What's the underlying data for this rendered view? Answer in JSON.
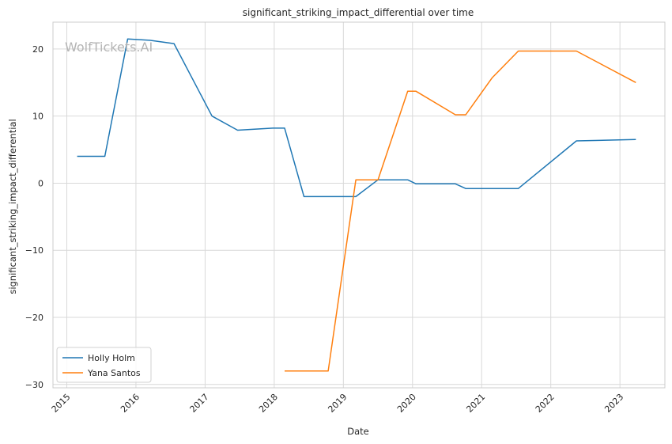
{
  "chart_data": {
    "type": "line",
    "title": "significant_striking_impact_differential over time",
    "xlabel": "Date",
    "ylabel": "significant_striking_impact_differential",
    "watermark": "WolfTickets.AI",
    "xlim": [
      2014.8,
      2023.65
    ],
    "ylim": [
      -30.5,
      24
    ],
    "x_ticks": [
      2015,
      2016,
      2017,
      2018,
      2019,
      2020,
      2021,
      2022,
      2023
    ],
    "x_tick_labels": [
      "2015",
      "2016",
      "2017",
      "2018",
      "2019",
      "2020",
      "2021",
      "2022",
      "2023"
    ],
    "y_ticks": [
      -30,
      -20,
      -10,
      0,
      10,
      20
    ],
    "y_tick_labels": [
      "−30",
      "−20",
      "−10",
      "0",
      "10",
      "20"
    ],
    "grid": true,
    "legend_position": "lower-left",
    "series": [
      {
        "name": "Holly Holm",
        "color": "#1f77b4",
        "x": [
          2015.15,
          2015.55,
          2015.88,
          2016.2,
          2016.55,
          2017.1,
          2017.47,
          2017.98,
          2018.15,
          2018.43,
          2018.9,
          2019.18,
          2019.5,
          2019.93,
          2020.05,
          2020.35,
          2020.62,
          2020.77,
          2021.18,
          2021.53,
          2022.37,
          2023.23
        ],
        "y": [
          4,
          4,
          21.5,
          21.3,
          20.8,
          10,
          7.9,
          8.2,
          8.2,
          -2,
          -2,
          -2,
          0.5,
          0.5,
          -0.1,
          -0.1,
          -0.1,
          -0.8,
          -0.8,
          -0.8,
          6.3,
          6.5
        ]
      },
      {
        "name": "Yana Santos",
        "color": "#ff7f0e",
        "x": [
          2018.15,
          2018.5,
          2018.78,
          2019.18,
          2019.5,
          2019.93,
          2020.05,
          2020.62,
          2020.77,
          2021.15,
          2021.53,
          2022.0,
          2022.37,
          2023.23
        ],
        "y": [
          -28,
          -28,
          -28,
          0.5,
          0.5,
          13.7,
          13.7,
          10.2,
          10.2,
          15.7,
          19.7,
          19.7,
          19.7,
          15
        ]
      }
    ]
  }
}
